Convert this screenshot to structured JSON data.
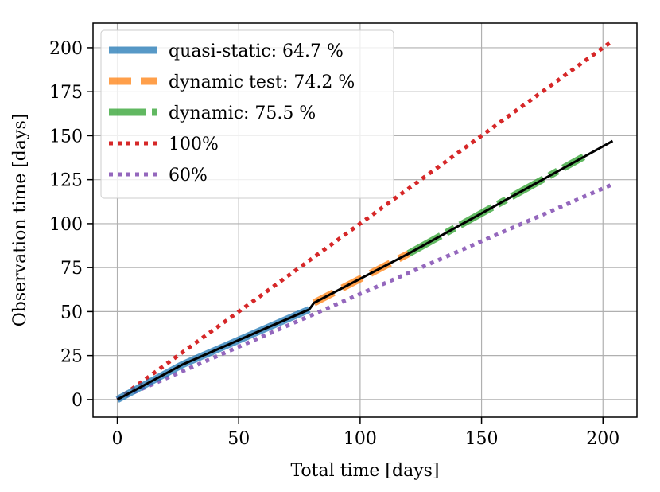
{
  "chart_data": {
    "type": "line",
    "title": "",
    "xlabel": "Total time [days]",
    "ylabel": "Observation time [days]",
    "xlim": [
      -10,
      214
    ],
    "ylim": [
      -10,
      214
    ],
    "xticks": [
      0,
      50,
      100,
      150,
      200
    ],
    "yticks": [
      0,
      25,
      50,
      75,
      100,
      125,
      150,
      175,
      200
    ],
    "grid": true,
    "legend_position": "top-left",
    "series": [
      {
        "name": "quasi-static: 64.7 %",
        "color": "#1f77b4",
        "style": "solid-thick",
        "x": [
          0,
          27,
          79
        ],
        "y": [
          0,
          20,
          51.2
        ]
      },
      {
        "name": "dynamic test: 74.2 %",
        "color": "#ff7f0e",
        "style": "dashed-thick",
        "x": [
          81,
          120
        ],
        "y": [
          55,
          83
        ]
      },
      {
        "name": "dynamic: 75.5 %",
        "color": "#2ca02c",
        "style": "dashdot-thick",
        "x": [
          120,
          192
        ],
        "y": [
          83,
          138
        ]
      },
      {
        "name": "100%",
        "color": "#d62728",
        "style": "dotted",
        "x": [
          0,
          204
        ],
        "y": [
          0,
          204
        ]
      },
      {
        "name": "60%",
        "color": "#9467bd",
        "style": "dotted",
        "x": [
          0,
          204
        ],
        "y": [
          0,
          122.4
        ]
      }
    ],
    "cumulative_line": {
      "color": "#000000",
      "x": [
        0,
        27,
        79,
        81,
        120,
        204
      ],
      "y": [
        0,
        20,
        51.2,
        55,
        83,
        147
      ]
    }
  }
}
